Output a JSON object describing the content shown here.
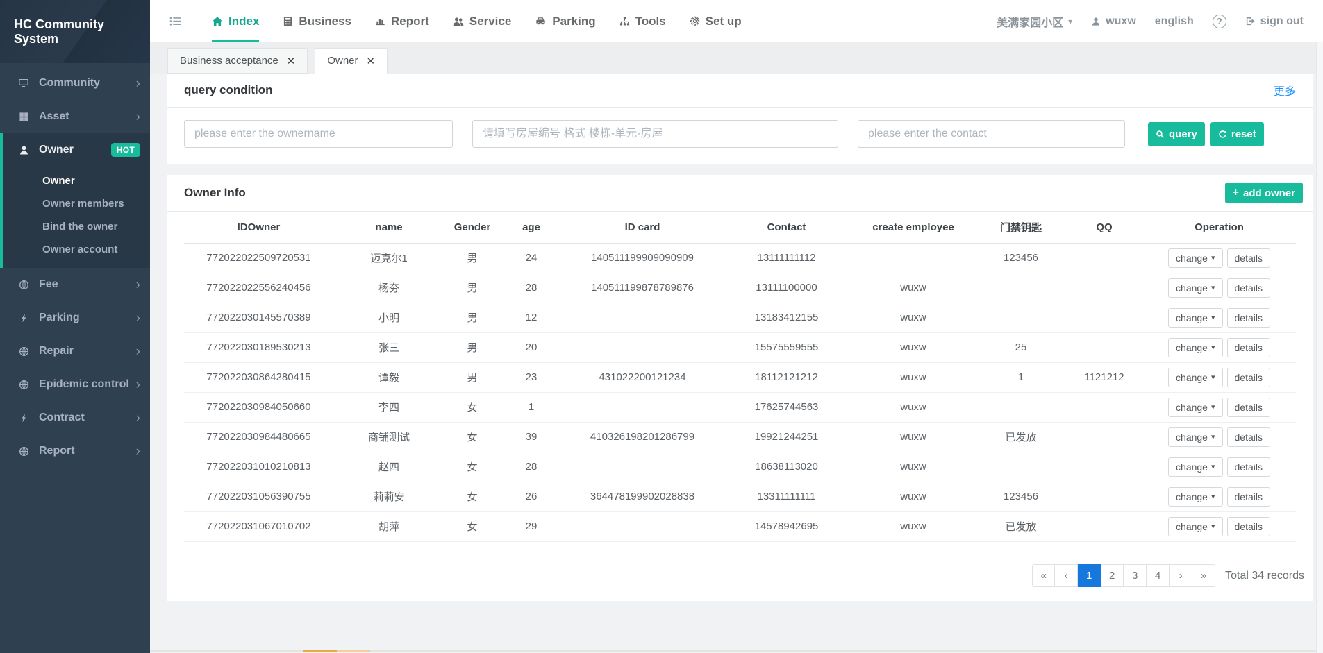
{
  "app": {
    "title": "HC Community System"
  },
  "topnav": {
    "items": [
      {
        "label": "Index",
        "icon": "home-icon",
        "active": true
      },
      {
        "label": "Business",
        "icon": "business-icon",
        "active": false
      },
      {
        "label": "Report",
        "icon": "report-icon",
        "active": false
      },
      {
        "label": "Service",
        "icon": "service-icon",
        "active": false
      },
      {
        "label": "Parking",
        "icon": "car-icon",
        "active": false
      },
      {
        "label": "Tools",
        "icon": "sitemap-icon",
        "active": false
      },
      {
        "label": "Set up",
        "icon": "gear-icon",
        "active": false
      }
    ],
    "right": {
      "community_name": "美满家园小区",
      "username": "wuxw",
      "language": "english",
      "signout_label": "sign out"
    }
  },
  "sidebar": {
    "items": [
      {
        "label": "Community",
        "icon": "desktop-icon",
        "chevron": true
      },
      {
        "label": "Asset",
        "icon": "grid-icon",
        "chevron": true
      },
      {
        "label": "Owner",
        "icon": "user-icon",
        "badge": "HOT",
        "active": true,
        "children": [
          {
            "label": "Owner",
            "active": true
          },
          {
            "label": "Owner members",
            "active": false
          },
          {
            "label": "Bind the owner",
            "active": false
          },
          {
            "label": "Owner account",
            "active": false
          }
        ]
      },
      {
        "label": "Fee",
        "icon": "globe-icon",
        "chevron": true
      },
      {
        "label": "Parking",
        "icon": "bolt-icon",
        "chevron": true
      },
      {
        "label": "Repair",
        "icon": "globe-icon",
        "chevron": true
      },
      {
        "label": "Epidemic control",
        "icon": "globe-icon",
        "chevron": true
      },
      {
        "label": "Contract",
        "icon": "bolt-icon",
        "chevron": true
      },
      {
        "label": "Report",
        "icon": "globe-icon",
        "chevron": true
      }
    ]
  },
  "tabs": [
    {
      "label": "Business acceptance",
      "active": false
    },
    {
      "label": "Owner",
      "active": true
    }
  ],
  "query": {
    "title": "query condition",
    "more_label": "更多",
    "inputs": [
      {
        "placeholder": "please enter the ownername"
      },
      {
        "placeholder": "请填写房屋编号 格式 楼栋-单元-房屋"
      },
      {
        "placeholder": "please enter the contact"
      }
    ],
    "query_label": "query",
    "reset_label": "reset"
  },
  "owner_info": {
    "title": "Owner Info",
    "add_label": "add owner",
    "columns": [
      "IDOwner",
      "name",
      "Gender",
      "age",
      "ID card",
      "Contact",
      "create employee",
      "门禁钥匙",
      "QQ",
      "Operation"
    ],
    "column_keys": [
      "idowner",
      "name",
      "gender",
      "age",
      "id-card",
      "contact",
      "create-employee",
      "door-key",
      "qq",
      "operation"
    ],
    "change_label": "change",
    "details_label": "details",
    "rows": [
      [
        "772022022509720531",
        "迈克尔1",
        "男",
        "24",
        "140511199909090909",
        "13111111112",
        "",
        "123456",
        ""
      ],
      [
        "772022022556240456",
        "杨夯",
        "男",
        "28",
        "140511199878789876",
        "13111100000",
        "wuxw",
        "",
        ""
      ],
      [
        "772022030145570389",
        "小明",
        "男",
        "12",
        "",
        "13183412155",
        "wuxw",
        "",
        ""
      ],
      [
        "772022030189530213",
        "张三",
        "男",
        "20",
        "",
        "15575559555",
        "wuxw",
        "25",
        ""
      ],
      [
        "772022030864280415",
        "谭毅",
        "男",
        "23",
        "431022200121234",
        "18112121212",
        "wuxw",
        "1",
        "1121212"
      ],
      [
        "772022030984050660",
        "李四",
        "女",
        "1",
        "",
        "17625744563",
        "wuxw",
        "",
        ""
      ],
      [
        "772022030984480665",
        "商铺测试",
        "女",
        "39",
        "410326198201286799",
        "19921244251",
        "wuxw",
        "已发放",
        ""
      ],
      [
        "772022031010210813",
        "赵四",
        "女",
        "28",
        "",
        "18638113020",
        "wuxw",
        "",
        ""
      ],
      [
        "772022031056390755",
        "莉莉安",
        "女",
        "26",
        "364478199902028838",
        "13311111111",
        "wuxw",
        "123456",
        ""
      ],
      [
        "772022031067010702",
        "胡萍",
        "女",
        "29",
        "",
        "14578942695",
        "wuxw",
        "已发放",
        ""
      ]
    ]
  },
  "pagination": {
    "items": [
      "«",
      "‹",
      "1",
      "2",
      "3",
      "4",
      "›",
      "»"
    ],
    "active": "1",
    "total_label": "Total 34 records"
  },
  "colors": {
    "accent_teal": "#18bc9c",
    "sidebar_bg": "#2f4050",
    "sidebar_active_bg": "#293846",
    "link_blue": "#1890ff",
    "pagination_active_blue": "#1678dc",
    "scroll_thumb_orange": "#efa645"
  }
}
